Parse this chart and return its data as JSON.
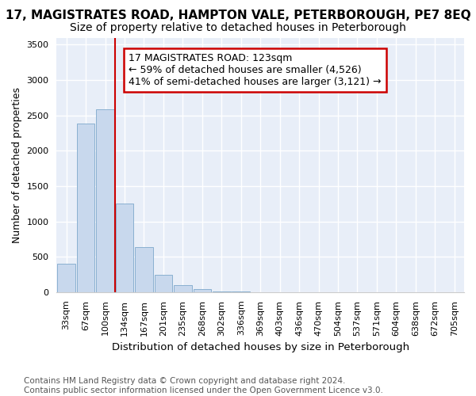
{
  "title": "17, MAGISTRATES ROAD, HAMPTON VALE, PETERBOROUGH, PE7 8EQ",
  "subtitle": "Size of property relative to detached houses in Peterborough",
  "xlabel": "Distribution of detached houses by size in Peterborough",
  "ylabel": "Number of detached properties",
  "footer1": "Contains HM Land Registry data © Crown copyright and database right 2024.",
  "footer2": "Contains public sector information licensed under the Open Government Licence v3.0.",
  "annotation_line1": "17 MAGISTRATES ROAD: 123sqm",
  "annotation_line2": "← 59% of detached houses are smaller (4,526)",
  "annotation_line3": "41% of semi-detached houses are larger (3,121) →",
  "categories": [
    "33sqm",
    "67sqm",
    "100sqm",
    "134sqm",
    "167sqm",
    "201sqm",
    "235sqm",
    "268sqm",
    "302sqm",
    "336sqm",
    "369sqm",
    "403sqm",
    "436sqm",
    "470sqm",
    "504sqm",
    "537sqm",
    "571sqm",
    "604sqm",
    "638sqm",
    "672sqm",
    "705sqm"
  ],
  "values": [
    400,
    2390,
    2590,
    1250,
    640,
    250,
    100,
    40,
    15,
    5,
    2,
    2,
    1,
    1,
    1,
    1,
    1,
    1,
    1,
    1,
    1
  ],
  "bar_color": "#c8d8ed",
  "bar_edge_color": "#8ab0d0",
  "vline_color": "#cc0000",
  "vline_pos": 2.5,
  "ylim": [
    0,
    3600
  ],
  "yticks": [
    0,
    500,
    1000,
    1500,
    2000,
    2500,
    3000,
    3500
  ],
  "bg_color": "#ffffff",
  "plot_bg_color": "#e8eef8",
  "grid_color": "#ffffff",
  "title_fontsize": 11,
  "subtitle_fontsize": 10,
  "ylabel_fontsize": 9,
  "xlabel_fontsize": 9.5,
  "tick_fontsize": 8,
  "footer_fontsize": 7.5,
  "annotation_fontsize": 9
}
